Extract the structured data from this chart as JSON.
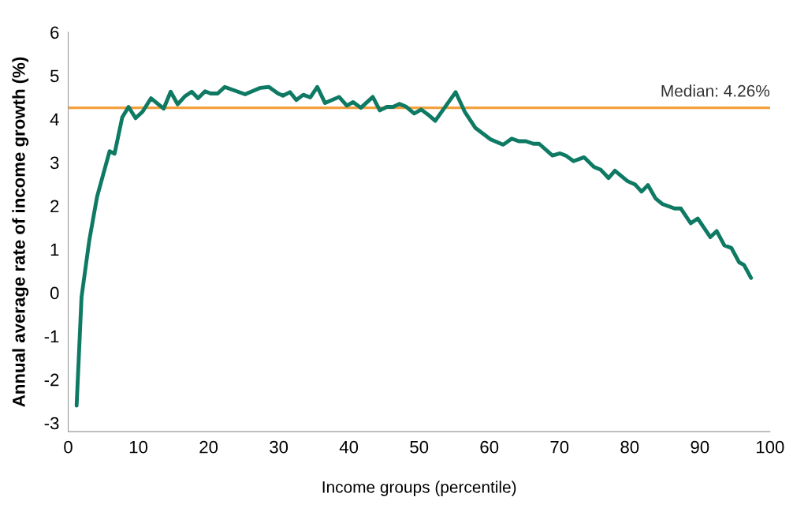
{
  "chart_data": {
    "type": "line",
    "xlabel": "Income groups (percentile)",
    "ylabel": "Annual average rate of income growth (%)",
    "xlim": [
      0,
      100
    ],
    "xticks": [
      0,
      10,
      20,
      30,
      40,
      50,
      60,
      70,
      80,
      90,
      100
    ],
    "ylim": [
      -3.2,
      6
    ],
    "yticks": [
      -3,
      -2,
      -1,
      0,
      1,
      2,
      3,
      4,
      5,
      6
    ],
    "grid": false,
    "legend": false,
    "ref_lines": [
      {
        "axis": "y",
        "value": 4.26,
        "label": "Median: 4.26%",
        "color": "#f4a03c"
      }
    ],
    "series": [
      {
        "color": "#0e7a64",
        "x": [
          1.2,
          1.9,
          3.0,
          4.1,
          5.9,
          6.6,
          7.7,
          8.6,
          9.6,
          10.6,
          11.8,
          13.6,
          14.6,
          15.6,
          16.6,
          17.6,
          18.5,
          19.5,
          20.3,
          21.3,
          22.3,
          25.2,
          27.4,
          28.6,
          29.9,
          30.6,
          31.6,
          32.5,
          33.5,
          34.5,
          35.5,
          36.6,
          38.6,
          39.7,
          40.6,
          41.7,
          43.4,
          44.4,
          45.4,
          46.3,
          47.2,
          48.2,
          49.3,
          50.3,
          51.3,
          52.3,
          55.2,
          56.5,
          58.0,
          60.2,
          62.0,
          63.2,
          64.2,
          65.2,
          66.3,
          67.1,
          69.0,
          70.1,
          70.9,
          72.0,
          73.5,
          74.9,
          75.9,
          77.0,
          77.9,
          79.7,
          80.8,
          81.7,
          82.6,
          83.7,
          84.7,
          86.4,
          87.3,
          88.7,
          89.7,
          91.5,
          92.4,
          93.5,
          94.5,
          95.6,
          96.3,
          97.3
        ],
        "values": [
          -2.6,
          -0.1,
          1.2,
          2.2,
          3.26,
          3.2,
          4.04,
          4.28,
          4.02,
          4.17,
          4.48,
          4.24,
          4.63,
          4.34,
          4.52,
          4.63,
          4.48,
          4.64,
          4.59,
          4.59,
          4.74,
          4.57,
          4.72,
          4.74,
          4.59,
          4.54,
          4.62,
          4.44,
          4.56,
          4.5,
          4.74,
          4.37,
          4.51,
          4.31,
          4.39,
          4.26,
          4.51,
          4.2,
          4.28,
          4.28,
          4.35,
          4.28,
          4.13,
          4.22,
          4.1,
          3.96,
          4.62,
          4.17,
          3.8,
          3.53,
          3.41,
          3.55,
          3.49,
          3.49,
          3.43,
          3.43,
          3.16,
          3.21,
          3.16,
          3.03,
          3.12,
          2.9,
          2.83,
          2.64,
          2.81,
          2.57,
          2.49,
          2.33,
          2.48,
          2.17,
          2.04,
          1.94,
          1.94,
          1.6,
          1.71,
          1.28,
          1.42,
          1.09,
          1.03,
          0.7,
          0.64,
          0.34
        ]
      }
    ]
  }
}
